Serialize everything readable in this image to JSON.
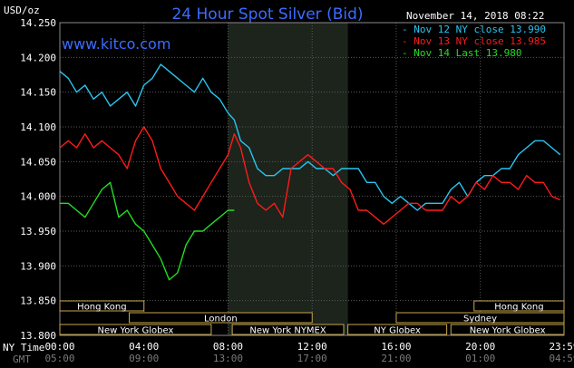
{
  "chart_data": {
    "type": "line",
    "title": "24 Hour Spot Silver (Bid)",
    "website": "www.kitco.com",
    "timestamp": "November 14, 2018 08:22",
    "ylabel": "USD/oz",
    "ylim": [
      13.8,
      14.25
    ],
    "yticks": [
      "14.250",
      "14.200",
      "14.150",
      "14.100",
      "14.050",
      "14.000",
      "13.950",
      "13.900",
      "13.850",
      "13.800"
    ],
    "xticks": [
      {
        "ny": "00:00",
        "gmt": "05:00"
      },
      {
        "ny": "04:00",
        "gmt": "09:00"
      },
      {
        "ny": "08:00",
        "gmt": "13:00"
      },
      {
        "ny": "12:00",
        "gmt": "17:00"
      },
      {
        "ny": "16:00",
        "gmt": "21:00"
      },
      {
        "ny": "20:00",
        "gmt": "01:00"
      },
      {
        "ny": "23:59",
        "gmt": "04:59"
      }
    ],
    "x_row_labels": {
      "ny": "NY Time",
      "gmt": "GMT"
    },
    "xlim_hours": [
      0,
      23.98
    ],
    "shaded_region_hours": [
      8,
      13.7
    ],
    "legend": [
      {
        "text": "Nov 12 NY close 13.990",
        "color": "#29c5f0"
      },
      {
        "text": "Nov 13 NY close 13.985",
        "color": "#ff1a1a"
      },
      {
        "text": "Nov 14 Last 13.980",
        "color": "#22dd22"
      }
    ],
    "series": [
      {
        "name": "Nov 12 NY close 13.990",
        "color": "#29c5f0",
        "x": [
          0,
          0.4,
          0.8,
          1.2,
          1.6,
          2.0,
          2.4,
          2.8,
          3.2,
          3.6,
          4.0,
          4.4,
          4.8,
          5.2,
          5.6,
          6.0,
          6.4,
          6.8,
          7.2,
          7.6,
          8.0,
          8.3,
          8.6,
          9.0,
          9.4,
          9.8,
          10.2,
          10.6,
          11.0,
          11.4,
          11.8,
          12.2,
          12.6,
          13.0,
          13.4,
          13.8,
          14.2,
          14.6,
          15.0,
          15.4,
          15.8,
          16.2,
          16.6,
          17.0,
          17.4,
          17.8,
          18.2,
          18.6,
          19.0,
          19.4,
          19.8,
          20.2,
          20.6,
          21.0,
          21.4,
          21.8,
          22.2,
          22.6,
          23.0,
          23.4,
          23.8
        ],
        "values": [
          14.18,
          14.17,
          14.15,
          14.16,
          14.14,
          14.15,
          14.13,
          14.14,
          14.15,
          14.13,
          14.16,
          14.17,
          14.19,
          14.18,
          14.17,
          14.16,
          14.15,
          14.17,
          14.15,
          14.14,
          14.12,
          14.11,
          14.08,
          14.07,
          14.04,
          14.03,
          14.03,
          14.04,
          14.04,
          14.04,
          14.05,
          14.04,
          14.04,
          14.03,
          14.04,
          14.04,
          14.04,
          14.02,
          14.02,
          14.0,
          13.99,
          14.0,
          13.99,
          13.98,
          13.99,
          13.99,
          13.99,
          14.01,
          14.02,
          14.0,
          14.02,
          14.03,
          14.03,
          14.04,
          14.04,
          14.06,
          14.07,
          14.08,
          14.08,
          14.07,
          14.06
        ]
      },
      {
        "name": "Nov 13 NY close 13.985",
        "color": "#ff1a1a",
        "x": [
          0,
          0.4,
          0.8,
          1.2,
          1.6,
          2.0,
          2.4,
          2.8,
          3.2,
          3.6,
          4.0,
          4.4,
          4.8,
          5.2,
          5.6,
          6.0,
          6.4,
          6.8,
          7.2,
          7.6,
          8.0,
          8.3,
          8.6,
          9.0,
          9.4,
          9.8,
          10.2,
          10.6,
          11.0,
          11.4,
          11.8,
          12.2,
          12.6,
          13.0,
          13.4,
          13.8,
          14.2,
          14.6,
          15.0,
          15.4,
          15.8,
          16.2,
          16.6,
          17.0,
          17.4,
          17.8,
          18.2,
          18.6,
          19.0,
          19.4,
          19.8,
          20.2,
          20.6,
          21.0,
          21.4,
          21.8,
          22.2,
          22.6,
          23.0,
          23.4,
          23.8
        ],
        "values": [
          14.07,
          14.08,
          14.07,
          14.09,
          14.07,
          14.08,
          14.07,
          14.06,
          14.04,
          14.08,
          14.1,
          14.08,
          14.04,
          14.02,
          14.0,
          13.99,
          13.98,
          14.0,
          14.02,
          14.04,
          14.06,
          14.09,
          14.07,
          14.02,
          13.99,
          13.98,
          13.99,
          13.97,
          14.04,
          14.05,
          14.06,
          14.05,
          14.04,
          14.04,
          14.02,
          14.01,
          13.98,
          13.98,
          13.97,
          13.96,
          13.97,
          13.98,
          13.99,
          13.99,
          13.98,
          13.98,
          13.98,
          14.0,
          13.99,
          14.0,
          14.02,
          14.01,
          14.03,
          14.02,
          14.02,
          14.01,
          14.03,
          14.02,
          14.02,
          14.0,
          13.995
        ]
      },
      {
        "name": "Nov 14 Last 13.980",
        "color": "#22dd22",
        "x": [
          0,
          0.4,
          0.8,
          1.2,
          1.6,
          2.0,
          2.4,
          2.8,
          3.2,
          3.6,
          4.0,
          4.4,
          4.8,
          5.2,
          5.6,
          6.0,
          6.4,
          6.8,
          7.2,
          7.6,
          8.0,
          8.3
        ],
        "values": [
          13.99,
          13.99,
          13.98,
          13.97,
          13.99,
          14.01,
          14.02,
          13.97,
          13.98,
          13.96,
          13.95,
          13.93,
          13.91,
          13.88,
          13.89,
          13.93,
          13.95,
          13.95,
          13.96,
          13.97,
          13.98,
          13.98
        ]
      }
    ],
    "markets": [
      {
        "name": "Hong Kong",
        "start": 0,
        "end": 4,
        "row": 0,
        "arrow": "end"
      },
      {
        "name": "Hong Kong",
        "start": 19.7,
        "end": 23.98,
        "row": 0,
        "arrow": "start"
      },
      {
        "name": "London",
        "start": 3.3,
        "end": 12,
        "row": 1,
        "arrow": "none"
      },
      {
        "name": "Sydney",
        "start": 16,
        "end": 23.98,
        "row": 1,
        "arrow": "start"
      },
      {
        "name": "New York Globex",
        "start": 0,
        "end": 7.2,
        "row": 2,
        "arrow": "none"
      },
      {
        "name": "New York NYMEX",
        "start": 8.2,
        "end": 13.5,
        "row": 2,
        "arrow": "none"
      },
      {
        "name": "NY Globex",
        "start": 13.7,
        "end": 18.4,
        "row": 2,
        "arrow": "none"
      },
      {
        "name": "New York Globex",
        "start": 18.6,
        "end": 23.98,
        "row": 2,
        "arrow": "none"
      }
    ]
  }
}
